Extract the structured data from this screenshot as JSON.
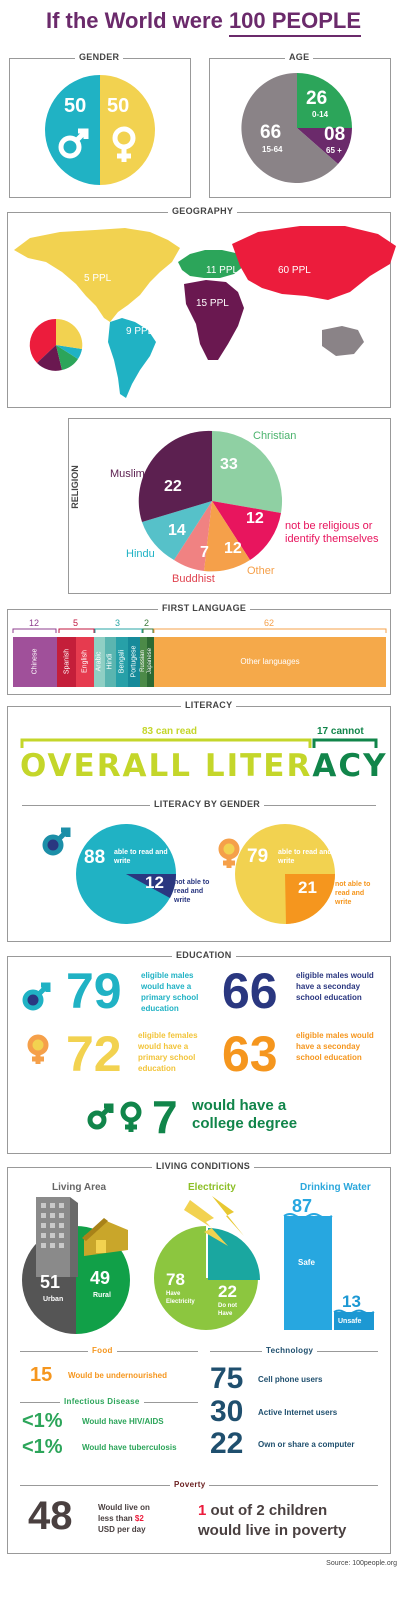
{
  "title": {
    "prefix": "If the World were ",
    "highlight": "100 PEOPLE"
  },
  "colors": {
    "purple": "#6b2a6b",
    "teal": "#20b2c4",
    "yellow": "#f2d250",
    "green": "#2ca55a",
    "gray": "#8a8387",
    "crimson": "#ec1c3c",
    "maroon": "#6a1850",
    "orange": "#f5a04a",
    "pink": "#e8155e",
    "navy": "#2a3780",
    "lime": "#c4d62a",
    "dkgreen": "#11854a"
  },
  "gender": {
    "heading": "GENDER",
    "male": "50",
    "female": "50"
  },
  "age": {
    "heading": "AGE",
    "segments": [
      {
        "value": "26",
        "label": "0-14"
      },
      {
        "value": "08",
        "label": "65 +"
      },
      {
        "value": "66",
        "label": "15-64"
      }
    ]
  },
  "geography": {
    "heading": "GEOGRAPHY",
    "regions": [
      {
        "label": "5 PPL"
      },
      {
        "label": "11 PPL"
      },
      {
        "label": "60 PPL"
      },
      {
        "label": "15 PPL"
      },
      {
        "label": "9 PPL"
      }
    ]
  },
  "religion": {
    "heading": "RELIGION",
    "slices": [
      {
        "value": "33",
        "label": "Christian"
      },
      {
        "value": "12",
        "label": "not be religious or identify themselves"
      },
      {
        "value": "12",
        "label": "Other"
      },
      {
        "value": "7",
        "label": "Buddhist"
      },
      {
        "value": "14",
        "label": "Hindu"
      },
      {
        "value": "22",
        "label": "Muslim"
      }
    ]
  },
  "first_language": {
    "heading": "FIRST LANGUAGE",
    "groups": [
      {
        "value": "12"
      },
      {
        "value": "5"
      },
      {
        "value": "3"
      },
      {
        "value": "2"
      },
      {
        "value": "62"
      }
    ],
    "languages": [
      "Chinese",
      "Spanish",
      "English",
      "Arabic",
      "Hindi",
      "Bengali",
      "Portugese",
      "Russian",
      "Japanese",
      "Other languages"
    ]
  },
  "literacy": {
    "heading": "LITERACY",
    "can_read": "83 can read",
    "cannot": "17 cannot",
    "overall_a": "OVERALL LITER",
    "overall_b": "ACY",
    "by_gender_heading": "LITERACY BY GENDER",
    "male": {
      "read": "88",
      "read_label": "able to read and write",
      "not": "12",
      "not_label": "not able to read and write"
    },
    "female": {
      "read": "79",
      "read_label": "able to read and write",
      "not": "21",
      "not_label": "not able to read and write"
    }
  },
  "education": {
    "heading": "EDUCATION",
    "items": [
      {
        "value": "79",
        "text": "eligible males would have a primary school education"
      },
      {
        "value": "66",
        "text": "eligible males would have a seconday school education"
      },
      {
        "value": "72",
        "text": "eligible females would have a primary school education"
      },
      {
        "value": "63",
        "text": "eligible males would have a seconday school education"
      }
    ],
    "college": {
      "value": "7",
      "text_line1": "would have a",
      "text_line2": "college degree"
    }
  },
  "living": {
    "heading": "LIVING CONDITIONS",
    "living_area": {
      "heading": "Living Area",
      "urban": "51",
      "urban_label": "Urban",
      "rural": "49",
      "rural_label": "Rural"
    },
    "electricity": {
      "heading": "Electricity",
      "have": "78",
      "have_label": "Have Electricity",
      "not": "22",
      "not_label": "Do not Have"
    },
    "water": {
      "heading": "Drinking Water",
      "safe": "87",
      "safe_label": "Safe",
      "unsafe": "13",
      "unsafe_label": "Unsafe"
    },
    "food": {
      "heading": "Food",
      "value": "15",
      "text": "Would be undernourished"
    },
    "disease": {
      "heading": "Infectious Disease",
      "items": [
        {
          "value": "<1%",
          "text": "Would have HIV/AIDS"
        },
        {
          "value": "<1%",
          "text": "Would have tuberculosis"
        }
      ]
    },
    "technology": {
      "heading": "Technology",
      "items": [
        {
          "value": "75",
          "text": "Cell phone users"
        },
        {
          "value": "30",
          "text": "Active Internet users"
        },
        {
          "value": "22",
          "text": "Own or share a computer"
        }
      ]
    },
    "poverty": {
      "heading": "Poverty",
      "value": "48",
      "text_a": "Would live on less than ",
      "text_b": "$2",
      "text_c": " USD per day",
      "children_num": "1",
      "children_text_a": " out of 2 children",
      "children_text_b": "would live in poverty"
    }
  },
  "source": "Source: 100people.org",
  "chart_data": [
    {
      "type": "pie",
      "title": "GENDER",
      "categories": [
        "Male",
        "Female"
      ],
      "values": [
        50,
        50
      ]
    },
    {
      "type": "pie",
      "title": "AGE",
      "categories": [
        "0-14",
        "65 +",
        "15-64"
      ],
      "values": [
        26,
        8,
        66
      ]
    },
    {
      "type": "pie",
      "title": "GEOGRAPHY",
      "categories": [
        "5 PPL",
        "11 PPL",
        "60 PPL",
        "15 PPL",
        "9 PPL"
      ],
      "values": [
        5,
        11,
        60,
        15,
        9
      ]
    },
    {
      "type": "pie",
      "title": "RELIGION",
      "categories": [
        "Christian",
        "not be religious or identify themselves",
        "Other",
        "Buddhist",
        "Hindu",
        "Muslim"
      ],
      "values": [
        33,
        12,
        12,
        7,
        14,
        22
      ]
    },
    {
      "type": "bar",
      "title": "FIRST LANGUAGE",
      "categories": [
        "Chinese",
        "Spanish",
        "English",
        "Arabic",
        "Hindi",
        "Bengali",
        "Portugese",
        "Russian",
        "Japanese",
        "Other languages"
      ],
      "values": [
        12,
        5,
        3,
        null,
        null,
        null,
        null,
        2,
        null,
        62
      ]
    },
    {
      "type": "bar",
      "title": "LITERACY",
      "categories": [
        "can read",
        "cannot"
      ],
      "values": [
        83,
        17
      ]
    },
    {
      "type": "pie",
      "title": "LITERACY BY GENDER",
      "series": [
        {
          "name": "male",
          "values": [
            88,
            12
          ]
        },
        {
          "name": "female",
          "values": [
            79,
            21
          ]
        }
      ]
    },
    {
      "type": "pie",
      "title": "Living Area",
      "categories": [
        "Urban",
        "Rural"
      ],
      "values": [
        51,
        49
      ]
    },
    {
      "type": "pie",
      "title": "Electricity",
      "categories": [
        "Have Electricity",
        "Do not Have"
      ],
      "values": [
        78,
        22
      ]
    },
    {
      "type": "bar",
      "title": "Drinking Water",
      "categories": [
        "Safe",
        "Unsafe"
      ],
      "values": [
        87,
        13
      ]
    }
  ]
}
